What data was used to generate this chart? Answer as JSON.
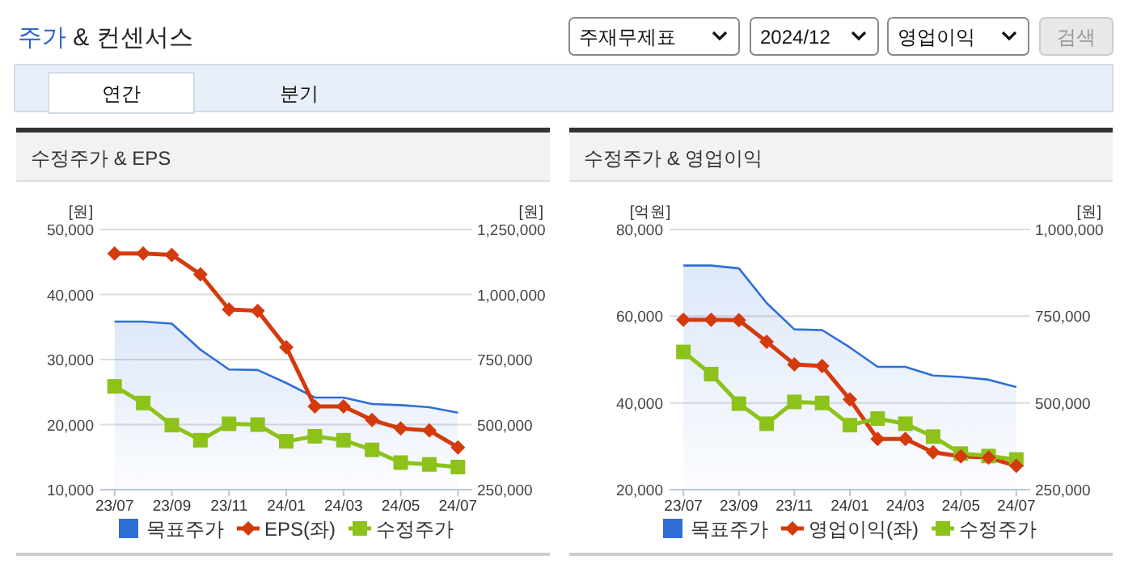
{
  "chart_data": [
    {
      "type": "other",
      "title": "주가 & 컨센서스",
      "annotations": [
        "주재무제표",
        "2024/12",
        "영업이익",
        "검색",
        "연간",
        "분기"
      ]
    },
    {
      "type": "line",
      "title": "수정주가 & EPS",
      "ylabel": "[원]",
      "y2label": "[원]",
      "categories": [
        "23/07",
        null,
        "23/09",
        null,
        "23/11",
        null,
        "24/01",
        null,
        "24/03",
        null,
        "24/05",
        null,
        "24/07"
      ],
      "ylim": [
        10000,
        50000
      ],
      "yticks": [
        {
          "value": 10000,
          "label": "10,000"
        },
        {
          "value": 20000,
          "label": "20,000"
        },
        {
          "value": 30000,
          "label": "30,000"
        },
        {
          "value": 40000,
          "label": "40,000"
        },
        {
          "value": 50000,
          "label": "50,000"
        }
      ],
      "y2lim": [
        250000,
        1250000
      ],
      "y2ticks": [
        {
          "value": 250000,
          "label": "250,000"
        },
        {
          "value": 500000,
          "label": "500,000"
        },
        {
          "value": 750000,
          "label": "750,000"
        },
        {
          "value": 1000000,
          "label": "1,000,000"
        },
        {
          "value": 1250000,
          "label": "1,250,000"
        }
      ],
      "grid": "y",
      "legend": "bottom",
      "series": [
        {
          "name": "목표주가",
          "type": "area",
          "axis": "y2",
          "color": "#2f6fd6",
          "marker": "none",
          "values": [
            896000,
            896000,
            888000,
            788000,
            712000,
            710000,
            660000,
            604000,
            604000,
            579000,
            575000,
            567000,
            546000
          ]
        },
        {
          "name": "EPS(좌)",
          "type": "line",
          "color": "#d43a0c",
          "marker": "diamond",
          "values": [
            46300,
            46300,
            46100,
            43100,
            37700,
            37500,
            31900,
            22800,
            22800,
            20700,
            19400,
            19100,
            16500
          ]
        },
        {
          "name": "수정주가",
          "type": "line",
          "axis": "y2",
          "color": "#8cc21a",
          "marker": "square",
          "values": [
            647000,
            583000,
            498000,
            440000,
            503000,
            500000,
            436000,
            455000,
            440000,
            403000,
            354000,
            347000,
            337000
          ]
        }
      ]
    },
    {
      "type": "line",
      "title": "수정주가 & 영업이익",
      "ylabel": "[억원]",
      "y2label": "[원]",
      "categories": [
        "23/07",
        null,
        "23/09",
        null,
        "23/11",
        null,
        "24/01",
        null,
        "24/03",
        null,
        "24/05",
        null,
        "24/07"
      ],
      "ylim": [
        20000,
        80000
      ],
      "yticks": [
        {
          "value": 20000,
          "label": "20,000"
        },
        {
          "value": 40000,
          "label": "40,000"
        },
        {
          "value": 60000,
          "label": "60,000"
        },
        {
          "value": 80000,
          "label": "80,000"
        }
      ],
      "y2lim": [
        250000,
        1000000
      ],
      "y2ticks": [
        {
          "value": 250000,
          "label": "250,000"
        },
        {
          "value": 500000,
          "label": "500,000"
        },
        {
          "value": 750000,
          "label": "750,000"
        },
        {
          "value": 1000000,
          "label": "1,000,000"
        }
      ],
      "grid": "y",
      "legend": "bottom",
      "series": [
        {
          "name": "목표주가",
          "type": "area",
          "axis": "y2",
          "color": "#2f6fd6",
          "marker": "none",
          "values": [
            896000,
            896000,
            888000,
            788000,
            712000,
            710000,
            660000,
            604000,
            604000,
            579000,
            575000,
            567000,
            546000
          ]
        },
        {
          "name": "영업이익(좌)",
          "type": "line",
          "color": "#d43a0c",
          "marker": "diamond",
          "values": [
            59200,
            59200,
            59100,
            54100,
            48900,
            48500,
            40800,
            31700,
            31700,
            28600,
            27700,
            27400,
            25500
          ]
        },
        {
          "name": "수정주가",
          "type": "line",
          "axis": "y2",
          "color": "#8cc21a",
          "marker": "square",
          "values": [
            647000,
            583000,
            498000,
            440000,
            503000,
            500000,
            436000,
            455000,
            440000,
            403000,
            354000,
            347000,
            337000
          ]
        }
      ]
    }
  ]
}
